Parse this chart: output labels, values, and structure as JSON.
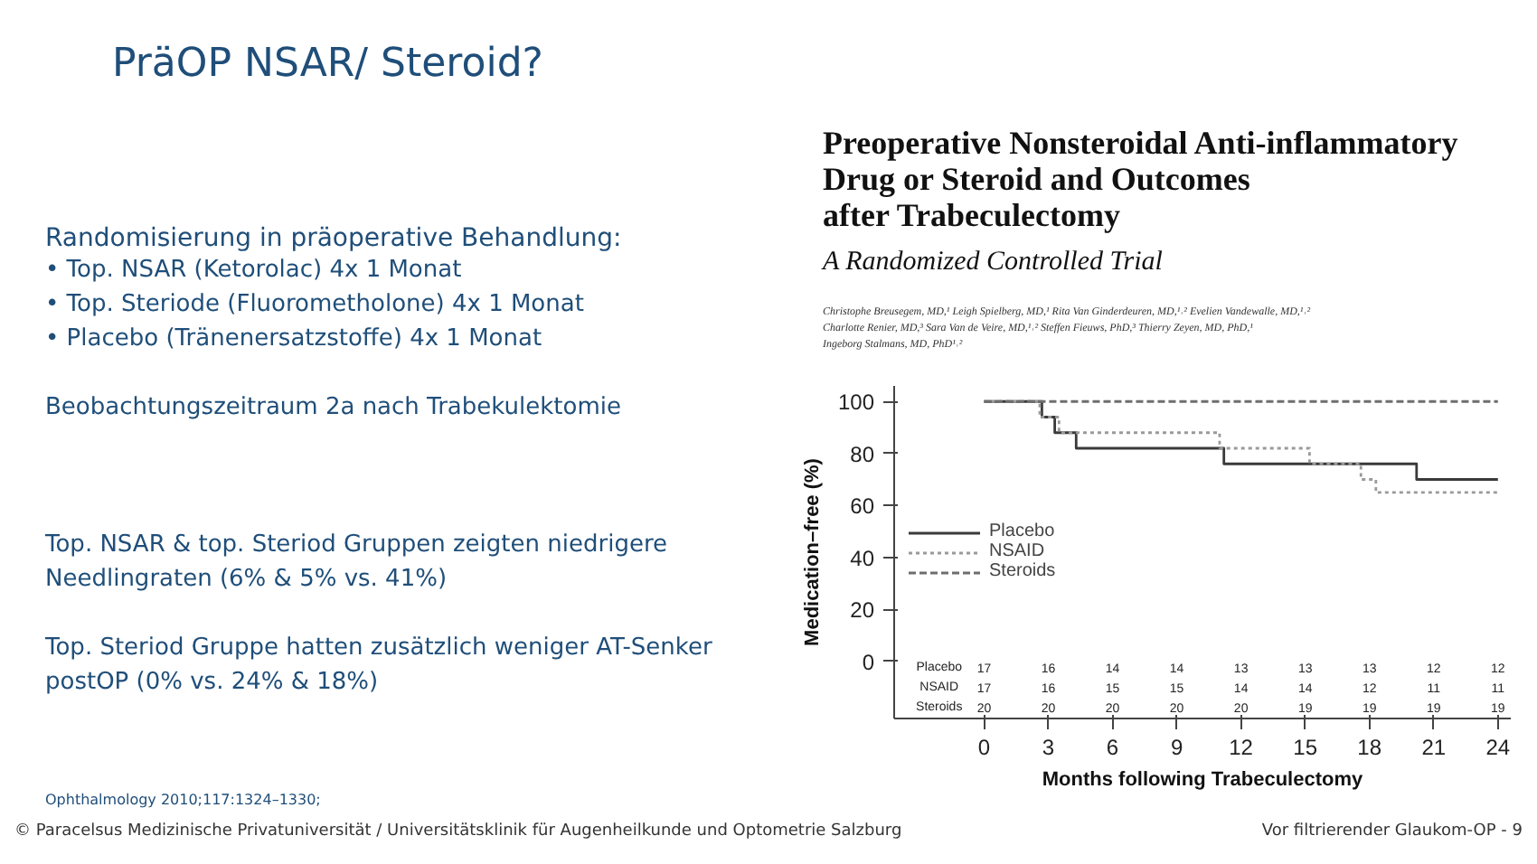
{
  "chart_data": {
    "type": "step",
    "title": "PräOP NSAR/ Steroid?",
    "xlabel": "Months following Trabeculectomy",
    "ylabel": "Medication–free (%)",
    "xlim": [
      -4.2,
      24.6
    ],
    "ylim": [
      -22,
      106
    ],
    "xticks": [
      0,
      3,
      6,
      9,
      12,
      15,
      18,
      21,
      24
    ],
    "yticks": [
      0,
      20,
      40,
      60,
      80,
      100
    ],
    "grid": false,
    "legend": "left",
    "marker": "none",
    "series": [
      {
        "name": "Placebo",
        "color": "#3a3a3a",
        "line_style": "solid",
        "x": [
          0,
          2.7,
          3.3,
          4.3,
          11.2,
          20.2,
          24
        ],
        "values": [
          100,
          94,
          88,
          82,
          76,
          70,
          70
        ]
      },
      {
        "name": "NSAID",
        "color": "#9a9a9a",
        "line_style": "dotted",
        "x": [
          0,
          2.6,
          3.5,
          11,
          15.2,
          17.6,
          18.3,
          24
        ],
        "values": [
          100,
          94,
          88,
          82,
          76,
          70,
          65,
          65
        ]
      },
      {
        "name": "Steroids",
        "color": "#6e6e6e",
        "line_style": "dashed",
        "x": [
          0,
          24
        ],
        "values": [
          100,
          100
        ]
      }
    ],
    "annotations": [
      "Randomisierung in präoperative Behandlung:",
      "•    Top. NSAR (Ketorolac) 4x 1 Monat",
      "•    Top. Steriode (Fluorometholone) 4x 1 Monat",
      "•    Placebo (Tränenersatzstoffe) 4x 1 Monat",
      "Beobachtungszeitraum 2a nach Trabekulektomie",
      "Top. NSAR & top. Steriod Gruppen zeigten niedrigere",
      "Needlingraten (6% & 5% vs. 41%)",
      "Top. Steriod Gruppe hatten zusätzlich weniger AT-Senker",
      "postOP (0% vs. 24% & 18%)",
      "Ophthalmology 2010;117:1324–1330;",
      "© Paracelsus Medizinische Privatuniversität / Universitätsklinik für Augenheilkunde und Optometrie Salzburg",
      "Vor filtrierender Glaukom-OP - 9",
      "Preoperative Nonsteroidal Anti-inflammatory",
      "Drug or Steroid and Outcomes",
      "after Trabeculectomy",
      "A Randomized Controlled Trial",
      "Christophe Breusegem, MD,¹ Leigh Spielberg, MD,¹ Rita Van Ginderdeuren, MD,¹˒² Evelien Vandewalle, MD,¹˒²",
      "Charlotte Renier, MD,³ Sara Van de Veire, MD,¹˒² Steffen Fieuws, PhD,³ Thierry Zeyen, MD, PhD,¹",
      "Ingeborg Stalmans, MD, PhD¹˒²",
      "Placebo",
      "NSAID",
      "Steroids",
      "17",
      "16",
      "14",
      "14",
      "13",
      "13",
      "13",
      "12",
      "12",
      "17",
      "16",
      "15",
      "15",
      "14",
      "14",
      "12",
      "11",
      "11",
      "20",
      "20",
      "20",
      "20",
      "20",
      "19",
      "19",
      "19",
      "19"
    ]
  }
}
